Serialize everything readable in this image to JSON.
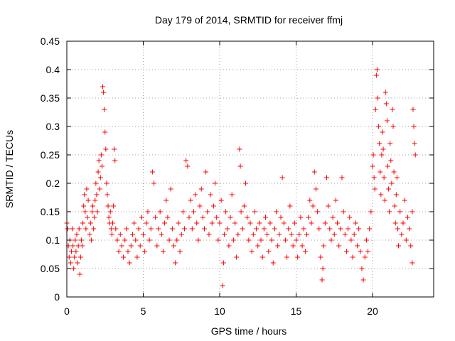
{
  "chart_data": {
    "type": "scatter",
    "title": "Day 179 of 2014, SRMTID for receiver ffmj",
    "xlabel": "GPS time / hours",
    "ylabel": "SRMTID / TECUs",
    "xlim": [
      0,
      24
    ],
    "ylim": [
      0,
      0.45
    ],
    "x_ticks": [
      0,
      5,
      10,
      15,
      20
    ],
    "x_tick_labels": [
      "0",
      "5",
      "10",
      "15",
      "20"
    ],
    "y_ticks": [
      0,
      0.05,
      0.1,
      0.15,
      0.2,
      0.25,
      0.3,
      0.35,
      0.4,
      0.45
    ],
    "y_tick_labels": [
      "0",
      "0.05",
      "0.1",
      "0.15",
      "0.2",
      "0.25",
      "0.3",
      "0.35",
      "0.4",
      "0.45"
    ],
    "grid": true,
    "marker": "plus",
    "colors": {
      "points": "#ff0000",
      "grid": "#a0a0a0",
      "axis": "#000000"
    },
    "series": [
      {
        "points": [
          [
            0.0,
            0.13
          ],
          [
            0.05,
            0.12
          ],
          [
            0.1,
            0.09
          ],
          [
            0.15,
            0.07
          ],
          [
            0.2,
            0.1
          ],
          [
            0.25,
            0.06
          ],
          [
            0.3,
            0.08
          ],
          [
            0.35,
            0.12
          ],
          [
            0.4,
            0.09
          ],
          [
            0.45,
            0.05
          ],
          [
            0.5,
            0.07
          ],
          [
            0.55,
            0.1
          ],
          [
            0.6,
            0.08
          ],
          [
            0.65,
            0.11
          ],
          [
            0.7,
            0.06
          ],
          [
            0.75,
            0.09
          ],
          [
            0.8,
            0.12
          ],
          [
            0.85,
            0.04
          ],
          [
            0.9,
            0.07
          ],
          [
            0.95,
            0.1
          ],
          [
            1.0,
            0.09
          ],
          [
            1.05,
            0.13
          ],
          [
            1.1,
            0.16
          ],
          [
            1.15,
            0.18
          ],
          [
            1.2,
            0.15
          ],
          [
            1.25,
            0.12
          ],
          [
            1.3,
            0.19
          ],
          [
            1.35,
            0.14
          ],
          [
            1.4,
            0.17
          ],
          [
            1.5,
            0.11
          ],
          [
            1.55,
            0.13
          ],
          [
            1.6,
            0.1
          ],
          [
            1.65,
            0.15
          ],
          [
            1.7,
            0.16
          ],
          [
            1.75,
            0.12
          ],
          [
            1.8,
            0.14
          ],
          [
            1.85,
            0.17
          ],
          [
            1.9,
            0.2
          ],
          [
            1.95,
            0.18
          ],
          [
            2.0,
            0.15
          ],
          [
            2.05,
            0.22
          ],
          [
            2.1,
            0.24
          ],
          [
            2.15,
            0.19
          ],
          [
            2.2,
            0.21
          ],
          [
            2.25,
            0.25
          ],
          [
            2.3,
            0.23
          ],
          [
            2.35,
            0.37
          ],
          [
            2.4,
            0.36
          ],
          [
            2.45,
            0.33
          ],
          [
            2.5,
            0.29
          ],
          [
            2.55,
            0.26
          ],
          [
            2.6,
            0.2
          ],
          [
            2.65,
            0.18
          ],
          [
            2.7,
            0.16
          ],
          [
            2.75,
            0.14
          ],
          [
            2.8,
            0.13
          ],
          [
            2.85,
            0.15
          ],
          [
            2.9,
            0.12
          ],
          [
            2.95,
            0.11
          ],
          [
            3.0,
            0.13
          ],
          [
            3.05,
            0.16
          ],
          [
            3.1,
            0.26
          ],
          [
            3.15,
            0.24
          ],
          [
            3.2,
            0.12
          ],
          [
            3.3,
            0.1
          ],
          [
            3.4,
            0.08
          ],
          [
            3.5,
            0.11
          ],
          [
            3.6,
            0.09
          ],
          [
            3.7,
            0.07
          ],
          [
            3.8,
            0.1
          ],
          [
            3.9,
            0.12
          ],
          [
            4.0,
            0.08
          ],
          [
            4.1,
            0.06
          ],
          [
            4.2,
            0.09
          ],
          [
            4.3,
            0.11
          ],
          [
            4.4,
            0.13
          ],
          [
            4.5,
            0.1
          ],
          [
            4.6,
            0.07
          ],
          [
            4.7,
            0.12
          ],
          [
            4.8,
            0.09
          ],
          [
            4.9,
            0.14
          ],
          [
            5.0,
            0.11
          ],
          [
            5.1,
            0.08
          ],
          [
            5.2,
            0.13
          ],
          [
            5.3,
            0.15
          ],
          [
            5.4,
            0.1
          ],
          [
            5.5,
            0.12
          ],
          [
            5.6,
            0.22
          ],
          [
            5.7,
            0.2
          ],
          [
            5.8,
            0.14
          ],
          [
            5.9,
            0.09
          ],
          [
            6.0,
            0.12
          ],
          [
            6.1,
            0.15
          ],
          [
            6.2,
            0.11
          ],
          [
            6.3,
            0.08
          ],
          [
            6.4,
            0.13
          ],
          [
            6.5,
            0.17
          ],
          [
            6.6,
            0.14
          ],
          [
            6.7,
            0.1
          ],
          [
            6.8,
            0.19
          ],
          [
            6.9,
            0.12
          ],
          [
            7.0,
            0.09
          ],
          [
            7.1,
            0.06
          ],
          [
            7.2,
            0.1
          ],
          [
            7.3,
            0.13
          ],
          [
            7.4,
            0.08
          ],
          [
            7.5,
            0.11
          ],
          [
            7.6,
            0.15
          ],
          [
            7.7,
            0.12
          ],
          [
            7.8,
            0.24
          ],
          [
            7.9,
            0.23
          ],
          [
            8.0,
            0.14
          ],
          [
            8.1,
            0.17
          ],
          [
            8.2,
            0.12
          ],
          [
            8.3,
            0.15
          ],
          [
            8.4,
            0.18
          ],
          [
            8.5,
            0.13
          ],
          [
            8.6,
            0.1
          ],
          [
            8.7,
            0.16
          ],
          [
            8.8,
            0.19
          ],
          [
            8.9,
            0.14
          ],
          [
            9.0,
            0.12
          ],
          [
            9.1,
            0.22
          ],
          [
            9.2,
            0.15
          ],
          [
            9.3,
            0.11
          ],
          [
            9.4,
            0.18
          ],
          [
            9.5,
            0.13
          ],
          [
            9.6,
            0.16
          ],
          [
            9.7,
            0.2
          ],
          [
            9.8,
            0.14
          ],
          [
            9.9,
            0.1
          ],
          [
            10.0,
            0.13
          ],
          [
            10.1,
            0.17
          ],
          [
            10.2,
            0.02
          ],
          [
            10.25,
            0.06
          ],
          [
            10.3,
            0.11
          ],
          [
            10.4,
            0.15
          ],
          [
            10.5,
            0.12
          ],
          [
            10.6,
            0.09
          ],
          [
            10.7,
            0.14
          ],
          [
            10.8,
            0.18
          ],
          [
            10.9,
            0.1
          ],
          [
            11.0,
            0.13
          ],
          [
            11.1,
            0.07
          ],
          [
            11.2,
            0.11
          ],
          [
            11.3,
            0.26
          ],
          [
            11.35,
            0.23
          ],
          [
            11.4,
            0.15
          ],
          [
            11.5,
            0.12
          ],
          [
            11.6,
            0.16
          ],
          [
            11.7,
            0.2
          ],
          [
            11.8,
            0.14
          ],
          [
            11.9,
            0.1
          ],
          [
            12.0,
            0.13
          ],
          [
            12.1,
            0.08
          ],
          [
            12.2,
            0.11
          ],
          [
            12.3,
            0.15
          ],
          [
            12.4,
            0.12
          ],
          [
            12.5,
            0.09
          ],
          [
            12.6,
            0.13
          ],
          [
            12.7,
            0.1
          ],
          [
            12.8,
            0.07
          ],
          [
            12.9,
            0.12
          ],
          [
            13.0,
            0.14
          ],
          [
            13.1,
            0.11
          ],
          [
            13.2,
            0.08
          ],
          [
            13.3,
            0.13
          ],
          [
            13.4,
            0.1
          ],
          [
            13.5,
            0.06
          ],
          [
            13.6,
            0.12
          ],
          [
            13.7,
            0.15
          ],
          [
            13.8,
            0.09
          ],
          [
            13.9,
            0.11
          ],
          [
            14.0,
            0.14
          ],
          [
            14.1,
            0.21
          ],
          [
            14.2,
            0.13
          ],
          [
            14.3,
            0.1
          ],
          [
            14.4,
            0.07
          ],
          [
            14.5,
            0.12
          ],
          [
            14.6,
            0.16
          ],
          [
            14.7,
            0.11
          ],
          [
            14.8,
            0.09
          ],
          [
            14.9,
            0.13
          ],
          [
            15.0,
            0.1
          ],
          [
            15.1,
            0.07
          ],
          [
            15.2,
            0.11
          ],
          [
            15.3,
            0.14
          ],
          [
            15.4,
            0.09
          ],
          [
            15.5,
            0.12
          ],
          [
            15.6,
            0.08
          ],
          [
            15.7,
            0.11
          ],
          [
            15.8,
            0.14
          ],
          [
            15.9,
            0.17
          ],
          [
            16.0,
            0.13
          ],
          [
            16.1,
            0.16
          ],
          [
            16.2,
            0.22
          ],
          [
            16.3,
            0.19
          ],
          [
            16.4,
            0.15
          ],
          [
            16.5,
            0.12
          ],
          [
            16.6,
            0.07
          ],
          [
            16.7,
            0.03
          ],
          [
            16.75,
            0.05
          ],
          [
            16.8,
            0.09
          ],
          [
            16.9,
            0.13
          ],
          [
            17.0,
            0.21
          ],
          [
            17.1,
            0.16
          ],
          [
            17.2,
            0.12
          ],
          [
            17.3,
            0.1
          ],
          [
            17.4,
            0.14
          ],
          [
            17.5,
            0.11
          ],
          [
            17.6,
            0.17
          ],
          [
            17.7,
            0.13
          ],
          [
            17.8,
            0.09
          ],
          [
            17.9,
            0.12
          ],
          [
            18.0,
            0.21
          ],
          [
            18.1,
            0.15
          ],
          [
            18.2,
            0.11
          ],
          [
            18.3,
            0.08
          ],
          [
            18.4,
            0.12
          ],
          [
            18.5,
            0.14
          ],
          [
            18.6,
            0.1
          ],
          [
            18.7,
            0.07
          ],
          [
            18.8,
            0.11
          ],
          [
            18.9,
            0.13
          ],
          [
            19.0,
            0.09
          ],
          [
            19.1,
            0.12
          ],
          [
            19.2,
            0.08
          ],
          [
            19.3,
            0.05
          ],
          [
            19.4,
            0.03
          ],
          [
            19.5,
            0.07
          ],
          [
            19.6,
            0.1
          ],
          [
            19.7,
            0.08
          ],
          [
            19.8,
            0.12
          ],
          [
            19.9,
            0.15
          ],
          [
            20.0,
            0.23
          ],
          [
            20.05,
            0.25
          ],
          [
            20.1,
            0.21
          ],
          [
            20.15,
            0.19
          ],
          [
            20.2,
            0.33
          ],
          [
            20.25,
            0.39
          ],
          [
            20.3,
            0.4
          ],
          [
            20.35,
            0.35
          ],
          [
            20.4,
            0.3
          ],
          [
            20.45,
            0.27
          ],
          [
            20.5,
            0.22
          ],
          [
            20.55,
            0.18
          ],
          [
            20.6,
            0.25
          ],
          [
            20.65,
            0.29
          ],
          [
            20.7,
            0.26
          ],
          [
            20.75,
            0.21
          ],
          [
            20.8,
            0.17
          ],
          [
            20.85,
            0.36
          ],
          [
            20.9,
            0.34
          ],
          [
            20.95,
            0.31
          ],
          [
            21.0,
            0.23
          ],
          [
            21.05,
            0.19
          ],
          [
            21.1,
            0.15
          ],
          [
            21.15,
            0.27
          ],
          [
            21.2,
            0.24
          ],
          [
            21.25,
            0.2
          ],
          [
            21.3,
            0.33
          ],
          [
            21.35,
            0.3
          ],
          [
            21.4,
            0.22
          ],
          [
            21.45,
            0.16
          ],
          [
            21.5,
            0.13
          ],
          [
            21.55,
            0.18
          ],
          [
            21.6,
            0.21
          ],
          [
            21.65,
            0.12
          ],
          [
            21.7,
            0.09
          ],
          [
            21.8,
            0.15
          ],
          [
            21.9,
            0.11
          ],
          [
            22.0,
            0.13
          ],
          [
            22.1,
            0.17
          ],
          [
            22.2,
            0.1
          ],
          [
            22.3,
            0.14
          ],
          [
            22.4,
            0.12
          ],
          [
            22.5,
            0.09
          ],
          [
            22.6,
            0.15
          ],
          [
            22.65,
            0.33
          ],
          [
            22.7,
            0.3
          ],
          [
            22.75,
            0.27
          ],
          [
            22.8,
            0.25
          ],
          [
            22.6,
            0.06
          ]
        ]
      }
    ]
  }
}
